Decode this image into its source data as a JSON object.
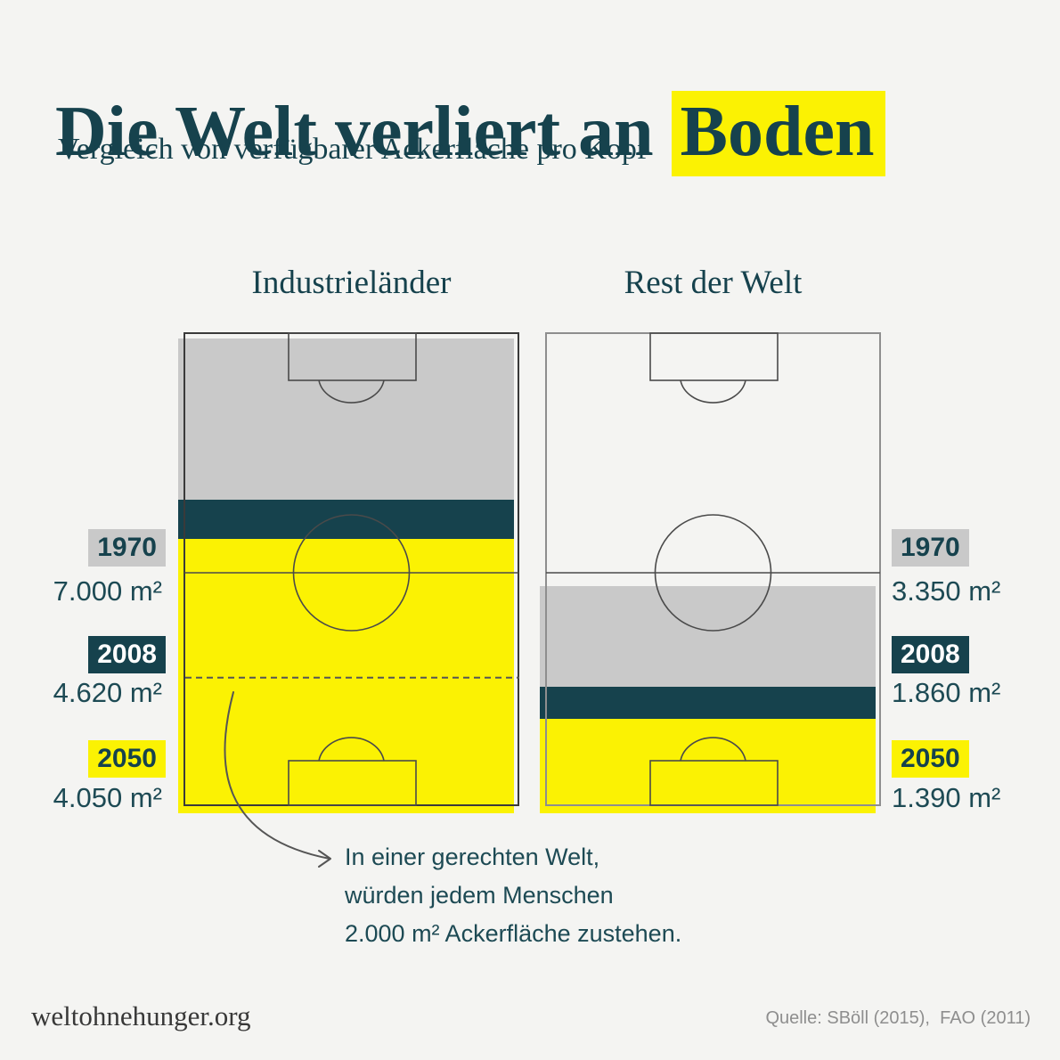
{
  "page": {
    "title_plain": "Die Welt verliert an ",
    "title_highlight": "Boden",
    "subtitle": "Vergleich von verfügbarer Ackerfläche pro Kopf",
    "footer_left": "weltohnehunger.org",
    "footer_right": "Quelle: SBöll (2015),  FAO (2011)"
  },
  "colors": {
    "background": "#f4f4f2",
    "teal": "#16424d",
    "text_teal": "#1d4a54",
    "gray_band": "#c9c9c9",
    "yellow": "#fbf203",
    "line": "#4a4a4a",
    "outline_dark": "#3a3a3a",
    "outline_gray": "#8e8e8e",
    "source_gray": "#8e8e8e"
  },
  "annotation": {
    "lines": [
      "In einer gerechten Welt,",
      "würden jedem Menschen",
      "2.000 m² Ackerfläche zustehen."
    ]
  },
  "chart_data": {
    "type": "bar",
    "variant": "pictorial-football-field-comparison",
    "title": "Die Welt verliert an Boden",
    "subtitle": "Vergleich von verfügbarer Ackerfläche pro Kopf",
    "unit": "m² Ackerfläche pro Kopf",
    "categories": [
      "1970",
      "2008",
      "2050"
    ],
    "series": [
      {
        "name": "Industrieländer",
        "values": [
          7000,
          4620,
          4050
        ],
        "value_labels": [
          "7.000 m²",
          "4.620 m²",
          "4.050 m²"
        ]
      },
      {
        "name": "Rest der Welt",
        "values": [
          3350,
          1860,
          1390
        ],
        "value_labels": [
          "3.350 m²",
          "1.860 m²",
          "1.390 m²"
        ]
      }
    ],
    "scale_max": 7000,
    "fair_share_value": 2000,
    "annotation": "In einer gerechten Welt, würden jedem Menschen 2.000 m² Ackerfläche zustehen.",
    "legend_position": "side",
    "band_meaning": {
      "gray": "verfügbar 1970 (bis 2008 verloren)",
      "teal": "zwischen 2008 und 2050 verloren",
      "yellow": "verbleibend 2050"
    }
  }
}
